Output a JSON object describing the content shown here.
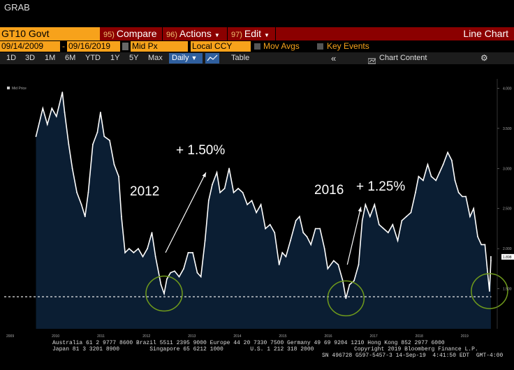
{
  "window": {
    "title": "GRAB"
  },
  "toolbar": {
    "ticker": "GT10 Govt",
    "menus": [
      {
        "num": "95)",
        "label": "Compare"
      },
      {
        "num": "96)",
        "label": "Actions"
      },
      {
        "num": "97)",
        "label": "Edit"
      }
    ],
    "view_title": "Line Chart"
  },
  "settings": {
    "start_date": "09/14/2009",
    "dash": "-",
    "end_date": "09/16/2019",
    "price_field": "Mid Px",
    "currency": "Local CCY",
    "mov_avgs": "Mov Avgs",
    "key_events": "Key Events"
  },
  "ranges": {
    "items": [
      "1D",
      "3D",
      "1M",
      "6M",
      "YTD",
      "1Y",
      "5Y",
      "Max"
    ],
    "frequency": "Daily",
    "table": "Table",
    "collapse": "«",
    "chart_content": "Chart Content"
  },
  "chart_data": {
    "type": "line",
    "legend": "Mid Price",
    "current_value_label": "1.898",
    "y_ticks": [
      "4.000",
      "3.500",
      "3.000",
      "2.500",
      "2.000",
      "1.500"
    ],
    "x_ticks": [
      "2009",
      "2010",
      "2011",
      "2012",
      "2013",
      "2014",
      "2015",
      "2016",
      "2017",
      "2018",
      "2019"
    ],
    "ylim": [
      1.0,
      4.1
    ],
    "support_level": 1.4,
    "series": [
      {
        "values": [
          [
            2009.7,
            3.4
          ],
          [
            2009.85,
            3.75
          ],
          [
            2009.95,
            3.55
          ],
          [
            2010.05,
            3.75
          ],
          [
            2010.15,
            3.65
          ],
          [
            2010.28,
            3.95
          ],
          [
            2010.33,
            3.7
          ],
          [
            2010.42,
            3.3
          ],
          [
            2010.5,
            3.0
          ],
          [
            2010.6,
            2.7
          ],
          [
            2010.7,
            2.55
          ],
          [
            2010.78,
            2.4
          ],
          [
            2010.85,
            2.7
          ],
          [
            2010.95,
            3.3
          ],
          [
            2011.05,
            3.45
          ],
          [
            2011.12,
            3.7
          ],
          [
            2011.2,
            3.4
          ],
          [
            2011.32,
            3.35
          ],
          [
            2011.42,
            3.05
          ],
          [
            2011.52,
            2.9
          ],
          [
            2011.58,
            2.4
          ],
          [
            2011.66,
            1.95
          ],
          [
            2011.75,
            2.0
          ],
          [
            2011.85,
            1.95
          ],
          [
            2011.95,
            2.0
          ],
          [
            2012.05,
            1.9
          ],
          [
            2012.15,
            2.0
          ],
          [
            2012.25,
            2.2
          ],
          [
            2012.33,
            1.9
          ],
          [
            2012.45,
            1.55
          ],
          [
            2012.52,
            1.44
          ],
          [
            2012.58,
            1.62
          ],
          [
            2012.66,
            1.7
          ],
          [
            2012.75,
            1.72
          ],
          [
            2012.85,
            1.65
          ],
          [
            2012.95,
            1.75
          ],
          [
            2013.05,
            1.95
          ],
          [
            2013.15,
            1.95
          ],
          [
            2013.25,
            1.7
          ],
          [
            2013.33,
            1.65
          ],
          [
            2013.42,
            2.1
          ],
          [
            2013.5,
            2.6
          ],
          [
            2013.58,
            2.8
          ],
          [
            2013.68,
            2.95
          ],
          [
            2013.75,
            2.7
          ],
          [
            2013.85,
            2.75
          ],
          [
            2013.95,
            3.0
          ],
          [
            2014.05,
            2.7
          ],
          [
            2014.15,
            2.75
          ],
          [
            2014.25,
            2.7
          ],
          [
            2014.35,
            2.55
          ],
          [
            2014.45,
            2.6
          ],
          [
            2014.55,
            2.45
          ],
          [
            2014.65,
            2.55
          ],
          [
            2014.75,
            2.25
          ],
          [
            2014.85,
            2.3
          ],
          [
            2014.95,
            2.2
          ],
          [
            2015.05,
            1.8
          ],
          [
            2015.12,
            1.95
          ],
          [
            2015.2,
            1.9
          ],
          [
            2015.3,
            2.1
          ],
          [
            2015.42,
            2.35
          ],
          [
            2015.5,
            2.4
          ],
          [
            2015.58,
            2.2
          ],
          [
            2015.66,
            2.15
          ],
          [
            2015.75,
            2.05
          ],
          [
            2015.85,
            2.25
          ],
          [
            2015.95,
            2.25
          ],
          [
            2016.05,
            2.0
          ],
          [
            2016.12,
            1.75
          ],
          [
            2016.25,
            1.85
          ],
          [
            2016.35,
            1.8
          ],
          [
            2016.45,
            1.6
          ],
          [
            2016.52,
            1.38
          ],
          [
            2016.6,
            1.55
          ],
          [
            2016.7,
            1.6
          ],
          [
            2016.8,
            1.8
          ],
          [
            2016.88,
            2.35
          ],
          [
            2016.95,
            2.55
          ],
          [
            2017.05,
            2.4
          ],
          [
            2017.15,
            2.55
          ],
          [
            2017.25,
            2.3
          ],
          [
            2017.35,
            2.25
          ],
          [
            2017.45,
            2.2
          ],
          [
            2017.55,
            2.3
          ],
          [
            2017.66,
            2.1
          ],
          [
            2017.75,
            2.35
          ],
          [
            2017.85,
            2.4
          ],
          [
            2017.95,
            2.45
          ],
          [
            2018.05,
            2.7
          ],
          [
            2018.12,
            2.9
          ],
          [
            2018.22,
            2.85
          ],
          [
            2018.32,
            3.05
          ],
          [
            2018.4,
            2.9
          ],
          [
            2018.5,
            2.85
          ],
          [
            2018.58,
            2.95
          ],
          [
            2018.66,
            3.05
          ],
          [
            2018.76,
            3.2
          ],
          [
            2018.85,
            3.1
          ],
          [
            2018.92,
            2.85
          ],
          [
            2019.0,
            2.7
          ],
          [
            2019.08,
            2.65
          ],
          [
            2019.16,
            2.65
          ],
          [
            2019.25,
            2.4
          ],
          [
            2019.33,
            2.5
          ],
          [
            2019.42,
            2.15
          ],
          [
            2019.5,
            2.05
          ],
          [
            2019.58,
            2.05
          ],
          [
            2019.63,
            1.75
          ],
          [
            2019.68,
            1.47
          ],
          [
            2019.71,
            1.85
          ],
          [
            2019.71,
            1.9
          ]
        ]
      }
    ],
    "annotations": [
      {
        "text": "2012",
        "label": "+ 1.50%"
      },
      {
        "text": "2016",
        "label": "+ 1.25%"
      }
    ]
  },
  "footer": {
    "line1": "Australia 61 2 9777 8600 Brazil 5511 2395 9000 Europe 44 20 7330 7500 Germany 49 69 9204 1210 Hong Kong 852 2977 6000",
    "line2": "Japan 81 3 3201 8900         Singapore 65 6212 1000        U.S. 1 212 318 2000            Copyright 2019 Bloomberg Finance L.P.",
    "line3": "SN 496728 G597-5457-3 14-Sep-19  4:41:50 EDT  GMT-4:00"
  }
}
